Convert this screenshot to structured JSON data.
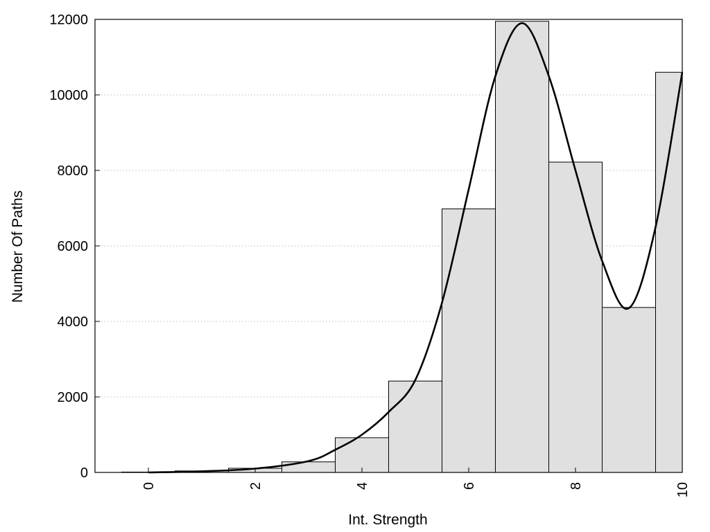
{
  "chart_data": {
    "type": "bar",
    "title": "",
    "xlabel": "Int. Strength",
    "ylabel": "Number Of Paths",
    "xlim": [
      -1,
      10
    ],
    "ylim": [
      0,
      12000
    ],
    "x_ticks": [
      0,
      2,
      4,
      6,
      8,
      10
    ],
    "y_ticks": [
      0,
      2000,
      4000,
      6000,
      8000,
      10000,
      12000
    ],
    "grid": "horizontal-dotted",
    "bar_color": "#e0e0e0",
    "bars": [
      {
        "x": 0,
        "value": 10
      },
      {
        "x": 1,
        "value": 40
      },
      {
        "x": 2,
        "value": 110
      },
      {
        "x": 3,
        "value": 280
      },
      {
        "x": 4,
        "value": 920
      },
      {
        "x": 5,
        "value": 2420
      },
      {
        "x": 6,
        "value": 6980
      },
      {
        "x": 7,
        "value": 11950
      },
      {
        "x": 8,
        "value": 8220
      },
      {
        "x": 9,
        "value": 4370
      },
      {
        "x": 10,
        "value": 10600
      }
    ],
    "curve": {
      "type": "line",
      "x": [
        0,
        1,
        2,
        3,
        3.5,
        4,
        4.5,
        5,
        5.5,
        6,
        6.5,
        7,
        7.5,
        8,
        8.5,
        9,
        9.5,
        10
      ],
      "y": [
        0,
        30,
        100,
        300,
        600,
        1000,
        1600,
        2450,
        4500,
        7500,
        10500,
        11900,
        10500,
        8000,
        5600,
        4350,
        6500,
        10600
      ]
    }
  }
}
